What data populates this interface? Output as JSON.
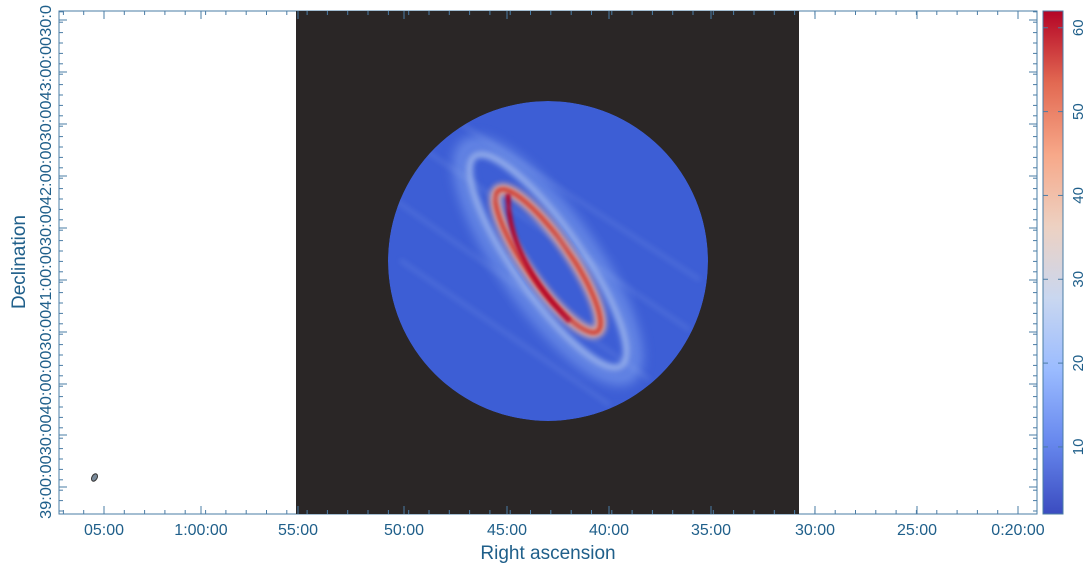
{
  "chart_data": {
    "type": "heatmap",
    "title": "",
    "xlabel": "Right ascension",
    "ylabel": "Declination",
    "x_ticks": [
      "05:00",
      "1:00:00",
      "55:00",
      "50:00",
      "45:00",
      "40:00",
      "35:00",
      "30:00",
      "25:00",
      "0:20:00"
    ],
    "y_tick_text": "39:00:0030:0040:00:0030:0041:00:0030:0042:00:0030:0043:00:0030:0",
    "colorbar": {
      "ticks": [
        10,
        20,
        30,
        40,
        50,
        60
      ],
      "range": [
        2,
        62
      ],
      "colors": [
        "#3b4cc0",
        "#6788ee",
        "#9abbff",
        "#c9d7f0",
        "#edd1c2",
        "#f7a889",
        "#e26952",
        "#b40426"
      ]
    },
    "background_color": "#2a2626",
    "disk_color": "#3d5ed5",
    "beam_color": "#7a8a9a",
    "features": {
      "ring_peak_value": 60,
      "disk_background_value": 5,
      "outer_ring_value": 18
    }
  }
}
